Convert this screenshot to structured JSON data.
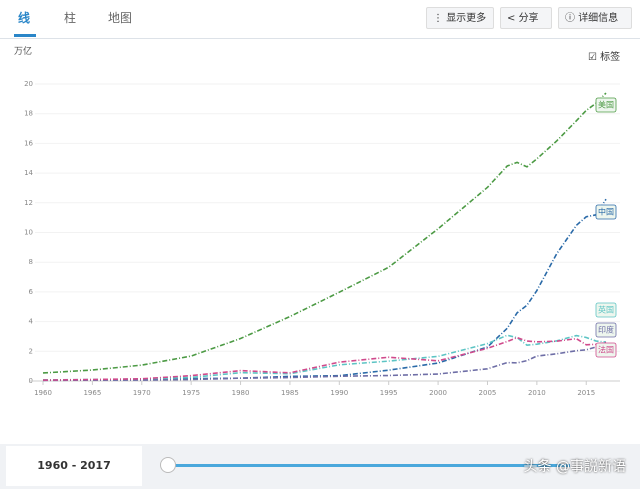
{
  "tabs": [
    "线",
    "柱",
    "地图"
  ],
  "buttons": [
    "显示更多",
    "分享",
    "详细信息"
  ],
  "label_toggle": "标签",
  "range_label": "1960 - 2017",
  "watermark": "头条 @事説新语",
  "chart_data": {
    "type": "line",
    "y_unit": "万亿",
    "x": [
      1960,
      1965,
      1970,
      1975,
      1980,
      1985,
      1990,
      1995,
      2000,
      2005,
      2007,
      2008,
      2009,
      2010,
      2012,
      2014,
      2015,
      2016,
      2017
    ],
    "xlim": [
      1960,
      2017
    ],
    "xticks": [
      1960,
      1965,
      1970,
      1975,
      1980,
      1985,
      1990,
      1995,
      2000,
      2005,
      2010,
      2015
    ],
    "ylim": [
      0,
      20
    ],
    "yticks": [
      0,
      2,
      4,
      6,
      8,
      10,
      12,
      14,
      16,
      18,
      20
    ],
    "series": [
      {
        "name": "美国",
        "color": "#4c9a44",
        "values": [
          0.54,
          0.74,
          1.07,
          1.68,
          2.86,
          4.34,
          5.98,
          7.66,
          10.25,
          13.04,
          14.48,
          14.72,
          14.42,
          14.96,
          16.16,
          17.52,
          18.22,
          18.71,
          19.39
        ]
      },
      {
        "name": "中国",
        "color": "#2a6aa8",
        "values": [
          0.06,
          0.07,
          0.09,
          0.16,
          0.19,
          0.31,
          0.36,
          0.73,
          1.21,
          2.29,
          3.55,
          4.59,
          5.1,
          6.09,
          8.56,
          10.48,
          11.06,
          11.19,
          12.24
        ]
      },
      {
        "name": "英国",
        "color": "#5cc4c4",
        "values": [
          0.07,
          0.1,
          0.13,
          0.24,
          0.56,
          0.49,
          1.09,
          1.34,
          1.66,
          2.52,
          3.08,
          2.92,
          2.41,
          2.48,
          2.7,
          3.06,
          2.93,
          2.69,
          2.62
        ]
      },
      {
        "name": "印度",
        "color": "#6e6ea6",
        "values": [
          0.04,
          0.06,
          0.06,
          0.1,
          0.19,
          0.23,
          0.32,
          0.37,
          0.47,
          0.82,
          1.24,
          1.22,
          1.37,
          1.68,
          1.83,
          2.04,
          2.1,
          2.29,
          2.6
        ]
      },
      {
        "name": "法国",
        "color": "#d04a8c",
        "values": [
          0.06,
          0.1,
          0.15,
          0.36,
          0.7,
          0.55,
          1.27,
          1.6,
          1.36,
          2.2,
          2.66,
          2.92,
          2.69,
          2.64,
          2.68,
          2.85,
          2.44,
          2.47,
          2.58
        ]
      }
    ]
  }
}
